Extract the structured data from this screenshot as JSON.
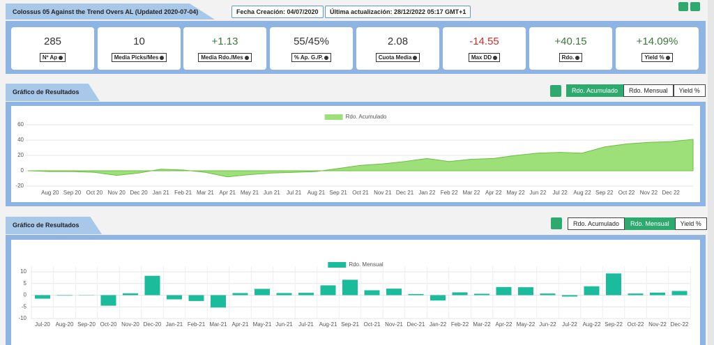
{
  "header": {
    "title": "Colossus 05 Against the Trend Overs AL (Updated 2020-07-04)",
    "badges": [
      "Fecha Creación: 04/07/2020",
      "Última actualización: 28/12/2022 05:17 GMT+1"
    ]
  },
  "stats": [
    {
      "value": "285",
      "label": "Nº Ap",
      "color": "#333333"
    },
    {
      "value": "10",
      "label": "Media Picks/Mes",
      "color": "#333333"
    },
    {
      "value": "+1.13",
      "label": "Media Rdo./Mes",
      "color": "#3c763d"
    },
    {
      "value": "55/45%",
      "label": "% Ap. G./P.",
      "color": "#333333"
    },
    {
      "value": "2.08",
      "label": "Cuota Media",
      "color": "#333333"
    },
    {
      "value": "-14.55",
      "label": "Max DD",
      "color": "#c9302c"
    },
    {
      "value": "+40.15",
      "label": "Rdo.",
      "color": "#3c763d"
    },
    {
      "value": "+14.09%",
      "label": "Yield %",
      "color": "#3c763d"
    }
  ],
  "sections": [
    {
      "title": "Gráfico de Resultados",
      "buttons": [
        "Rdo. Acumulado",
        "Rdo. Mensual",
        "Yield %"
      ],
      "active": 0
    },
    {
      "title": "Gráfico de Resultados",
      "buttons": [
        "Rdo. Acumulado",
        "Rdo. Mensual",
        "Yield %"
      ],
      "active": 1
    }
  ],
  "chart_data": [
    {
      "type": "area",
      "categories": [
        null,
        "Aug 20",
        "Sep 20",
        "Oct 20",
        "Nov 20",
        "Dec 20",
        "Jan 21",
        "Feb 21",
        "Mar 21",
        "Apr 21",
        "May 21",
        "Jun 21",
        "Jul 21",
        "Aug 21",
        "Sep 21",
        "Oct 21",
        "Nov 21",
        "Dec 21",
        "Jan 22",
        "Feb 22",
        "Mar 22",
        "Apr 22",
        "May 22",
        "Jun 22",
        "Jul 22",
        "Aug 22",
        "Sep 22",
        "Oct 22",
        "Nov 22",
        "Dec 22",
        null
      ],
      "series": [
        {
          "name": "Rdo. Acumulado",
          "color": "#9de07a",
          "values": [
            0,
            -1,
            -1,
            -2,
            -6,
            -3,
            2,
            1,
            -2,
            -8,
            -5,
            -3,
            -2,
            -1,
            3,
            7,
            9,
            12,
            16,
            12,
            15,
            16,
            20,
            23,
            24,
            23,
            31,
            35,
            37,
            38,
            41
          ]
        }
      ],
      "ylim": [
        -20,
        60
      ],
      "yticks": [
        -20,
        0,
        20,
        40,
        60
      ],
      "grid": true
    },
    {
      "type": "bar",
      "categories": [
        "Jul-20",
        "Aug-20",
        "Sep-20",
        "Oct-20",
        "Nov-20",
        "Dec-20",
        "Jan-21",
        "Feb-21",
        "Mar-21",
        "Apr-21",
        "May-21",
        "Jun-21",
        "Jul-21",
        "Aug-21",
        "Sep-21",
        "Oct-21",
        "Nov-21",
        "Dec-21",
        "Jan-22",
        "Feb-22",
        "Mar-22",
        "Apr-22",
        "May-22",
        "Jun-22",
        "Jul-22",
        "Aug-22",
        "Sep-22",
        "Oct-22",
        "Nov-22",
        "Dec-22"
      ],
      "series": [
        {
          "name": "Rdo. Mensual",
          "color": "#1abc9c",
          "values": [
            -1.5,
            -0.2,
            -0.1,
            -4.5,
            0.8,
            8.3,
            -1.8,
            -2.5,
            -5.3,
            0.9,
            2.7,
            0.9,
            1.0,
            4.2,
            6.6,
            2.1,
            2.8,
            0.5,
            -2.3,
            1.2,
            0.6,
            3.5,
            3.4,
            0.7,
            -0.6,
            3.8,
            9.3,
            0.7,
            1.1,
            1.8
          ]
        }
      ],
      "ylim": [
        -10,
        10
      ],
      "yticks": [
        -10,
        -5,
        0,
        5,
        10
      ],
      "grid": true
    }
  ]
}
